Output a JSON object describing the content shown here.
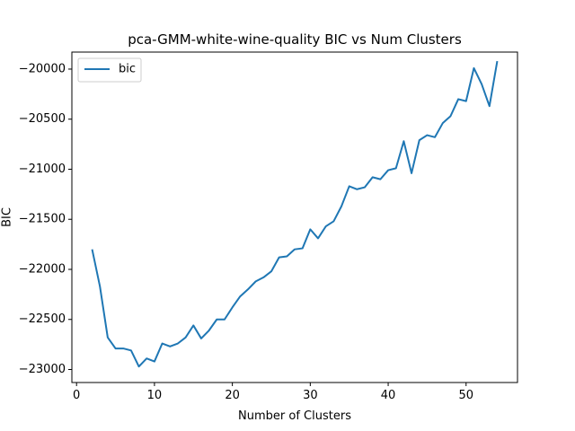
{
  "chart_data": {
    "type": "line",
    "title": "pca-GMM-white-wine-quality BIC vs Num Clusters",
    "xlabel": "Number of Clusters",
    "ylabel": "BIC",
    "xlim": [
      -0.6,
      56.6
    ],
    "ylim": [
      -23130,
      -19830
    ],
    "xticks": [
      0,
      10,
      20,
      30,
      40,
      50
    ],
    "yticks": [
      -23000,
      -22500,
      -22000,
      -21500,
      -21000,
      -20500,
      -20000
    ],
    "grid": false,
    "legend": "top-left",
    "series": [
      {
        "name": "bic",
        "color": "#1f77b4",
        "x": [
          2,
          3,
          4,
          5,
          6,
          7,
          8,
          9,
          10,
          11,
          12,
          13,
          14,
          15,
          16,
          17,
          18,
          19,
          20,
          21,
          22,
          23,
          24,
          25,
          26,
          27,
          28,
          29,
          30,
          31,
          32,
          33,
          34,
          35,
          36,
          37,
          38,
          39,
          40,
          41,
          42,
          43,
          44,
          45,
          46,
          47,
          48,
          49,
          50,
          51,
          52,
          53,
          54
        ],
        "y": [
          -21800,
          -22170,
          -22680,
          -22790,
          -22790,
          -22810,
          -22970,
          -22890,
          -22920,
          -22740,
          -22770,
          -22740,
          -22680,
          -22560,
          -22690,
          -22610,
          -22500,
          -22500,
          -22380,
          -22270,
          -22200,
          -22120,
          -22080,
          -22020,
          -21880,
          -21870,
          -21800,
          -21790,
          -21600,
          -21690,
          -21570,
          -21520,
          -21370,
          -21170,
          -21200,
          -21180,
          -21080,
          -21100,
          -21010,
          -20990,
          -20720,
          -21040,
          -20710,
          -20660,
          -20680,
          -20540,
          -20470,
          -20300,
          -20320,
          -19990,
          -20150,
          -20370,
          -19920
        ]
      }
    ]
  }
}
